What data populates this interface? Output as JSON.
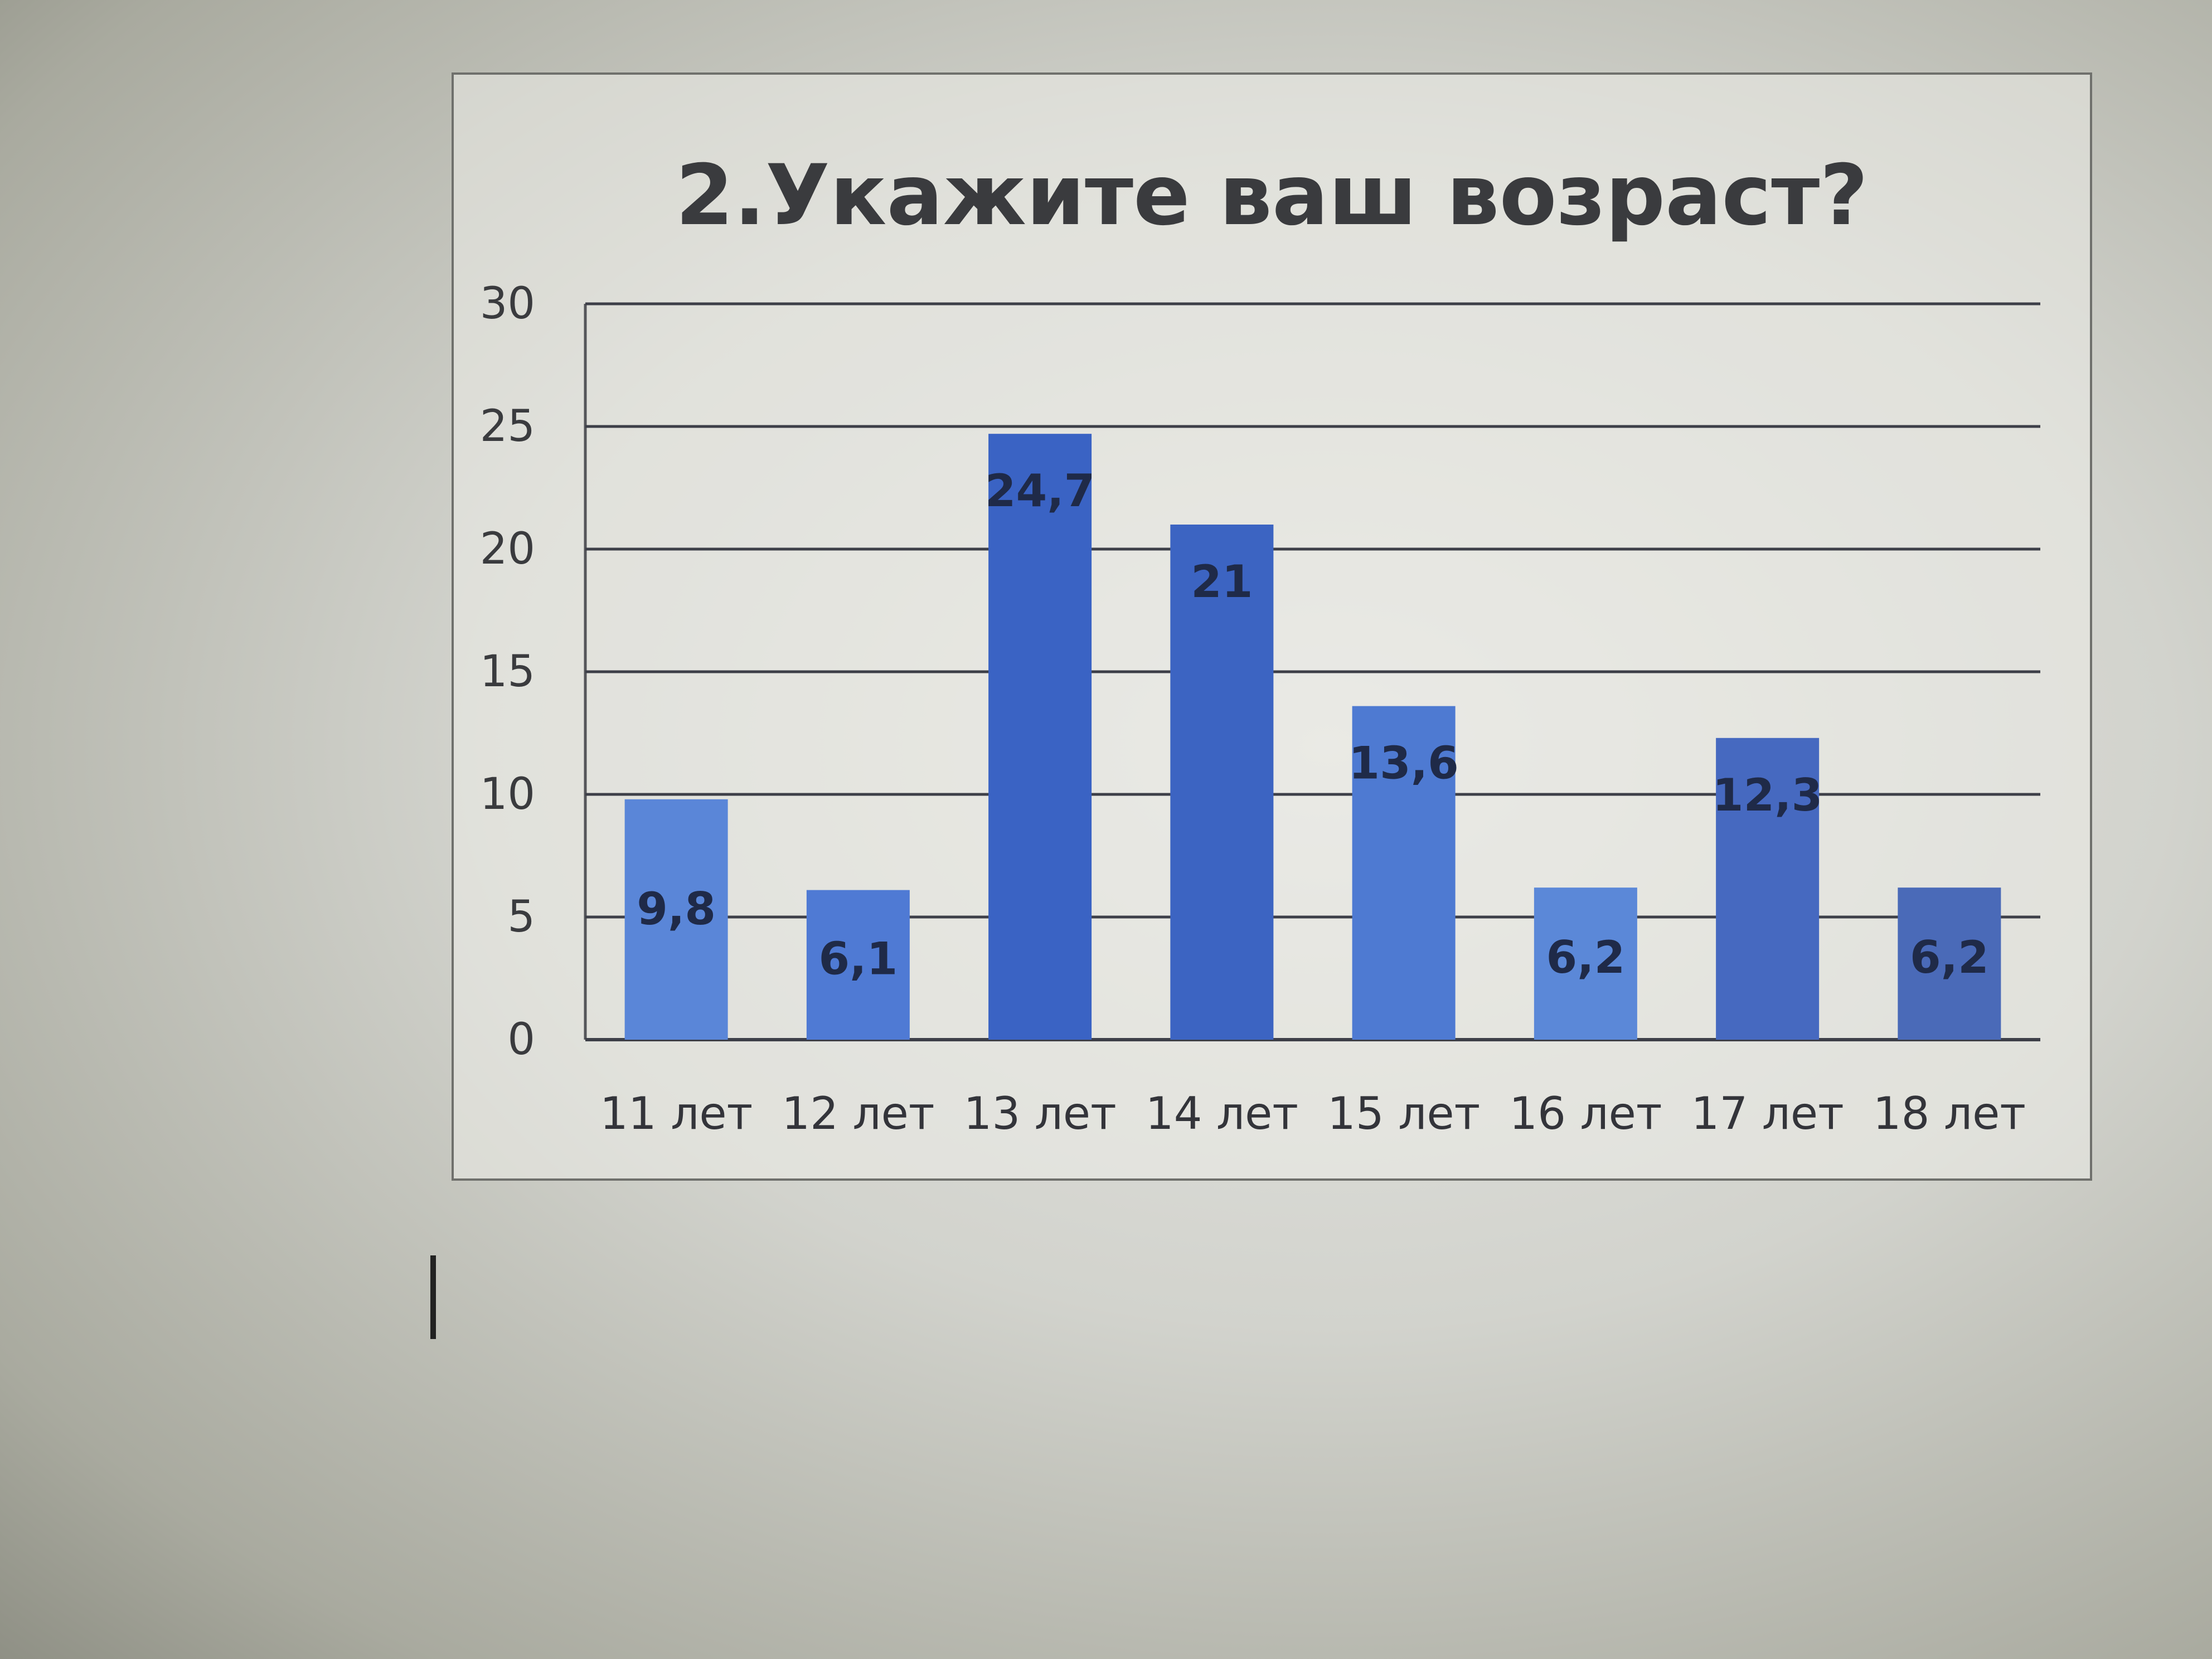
{
  "chart_data": {
    "type": "bar",
    "title": "2.Укажите ваш возраст?",
    "categories": [
      "11 лет",
      "12 лет",
      "13 лет",
      "14 лет",
      "15 лет",
      "16 лет",
      "17 лет",
      "18 лет"
    ],
    "values": [
      9.8,
      6.1,
      24.7,
      21,
      13.6,
      6.2,
      12.3,
      6.2
    ],
    "data_labels": [
      "9,8",
      "6,1",
      "24,7",
      "21",
      "13,6",
      "6,2",
      "12,3",
      "6,2"
    ],
    "yticks": [
      "0",
      "5",
      "10",
      "15",
      "20",
      "25",
      "30"
    ],
    "ylim": [
      0,
      30
    ],
    "grid": true,
    "legend": "none",
    "bar_colors": [
      "#5a86d8",
      "#4f7ad4",
      "#3a63c4",
      "#3c64c2",
      "#4e7ad2",
      "#5b88d8",
      "#4669c0",
      "#4a6ab8"
    ]
  }
}
